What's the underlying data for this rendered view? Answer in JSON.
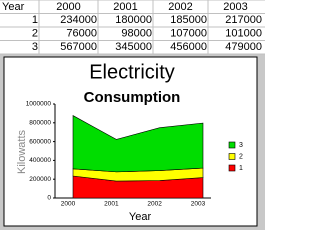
{
  "table": {
    "header": [
      "Year",
      2000,
      2001,
      2002,
      2003
    ],
    "rows": [
      [
        1,
        234000,
        180000,
        185000,
        217000
      ],
      [
        2,
        76000,
        98000,
        107000,
        101000
      ],
      [
        3,
        567000,
        345000,
        456000,
        479000
      ]
    ]
  },
  "chart_data": {
    "type": "stacked_area",
    "title": "Electricity",
    "subtitle": "Consumption",
    "x_label": "Year",
    "y_label": "Kilowatts",
    "categories": [
      "2000",
      "2001",
      "2002",
      "2003"
    ],
    "series": [
      {
        "name": "1",
        "color": "#ff0000",
        "values": [
          234000,
          180000,
          185000,
          217000
        ]
      },
      {
        "name": "2",
        "color": "#ffff00",
        "values": [
          76000,
          98000,
          107000,
          101000
        ]
      },
      {
        "name": "3",
        "color": "#00dd00",
        "values": [
          567000,
          345000,
          456000,
          479000
        ]
      }
    ],
    "ylim": [
      0,
      1000000
    ],
    "yticks": [
      0,
      200000,
      400000,
      600000,
      800000,
      1000000
    ],
    "grid": false
  }
}
